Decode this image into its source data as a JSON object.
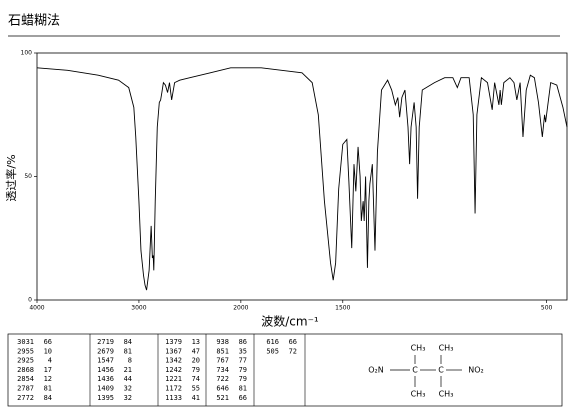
{
  "chart_data": {
    "type": "line",
    "title": "石蜡糊法",
    "x_label": "波数/cm⁻¹",
    "y_label": "透过率/%",
    "xlim": [
      4000,
      400
    ],
    "x_compressed_above": 2000,
    "ylim": [
      0,
      100
    ],
    "xticks": [
      4000,
      3000,
      2000,
      1500,
      500
    ],
    "yticks": [
      0,
      50,
      100
    ],
    "color": "#000000",
    "x": [
      4000,
      3700,
      3400,
      3200,
      3100,
      3050,
      3031,
      3000,
      2980,
      2955,
      2940,
      2925,
      2900,
      2880,
      2868,
      2860,
      2854,
      2840,
      2820,
      2800,
      2787,
      2775,
      2760,
      2740,
      2719,
      2700,
      2679,
      2650,
      2600,
      2500,
      2300,
      2100,
      2000,
      1900,
      1800,
      1700,
      1650,
      1620,
      1590,
      1560,
      1547,
      1535,
      1520,
      1500,
      1480,
      1470,
      1456,
      1445,
      1436,
      1425,
      1415,
      1409,
      1400,
      1395,
      1388,
      1379,
      1372,
      1367,
      1355,
      1342,
      1330,
      1310,
      1280,
      1260,
      1242,
      1230,
      1221,
      1210,
      1195,
      1180,
      1172,
      1165,
      1150,
      1140,
      1133,
      1125,
      1110,
      1050,
      1000,
      960,
      938,
      920,
      880,
      860,
      851,
      842,
      820,
      790,
      767,
      755,
      734,
      728,
      722,
      710,
      680,
      660,
      646,
      630,
      616,
      600,
      580,
      560,
      540,
      521,
      510,
      505,
      480,
      450,
      420,
      400
    ],
    "values": [
      94,
      93,
      91,
      89,
      86,
      78,
      66,
      40,
      20,
      10,
      6,
      4,
      12,
      30,
      17,
      18,
      12,
      40,
      70,
      80,
      81,
      84,
      88,
      87,
      84,
      88,
      81,
      88,
      89,
      90,
      92,
      94,
      94,
      94,
      93,
      92,
      88,
      75,
      40,
      15,
      8,
      15,
      45,
      63,
      65,
      48,
      21,
      55,
      44,
      62,
      50,
      32,
      40,
      32,
      50,
      13,
      40,
      47,
      55,
      20,
      60,
      85,
      89,
      85,
      79,
      82,
      74,
      82,
      85,
      70,
      55,
      70,
      80,
      70,
      41,
      70,
      85,
      88,
      90,
      90,
      86,
      90,
      90,
      75,
      35,
      75,
      90,
      88,
      77,
      88,
      79,
      85,
      79,
      88,
      90,
      88,
      81,
      88,
      66,
      85,
      91,
      90,
      80,
      66,
      75,
      72,
      88,
      87,
      78,
      70
    ]
  },
  "peak_table": [
    [
      [
        3031,
        66
      ],
      [
        2955,
        10
      ],
      [
        2925,
        4
      ],
      [
        2868,
        17
      ],
      [
        2854,
        12
      ],
      [
        2787,
        81
      ],
      [
        2772,
        84
      ]
    ],
    [
      [
        2719,
        84
      ],
      [
        2679,
        81
      ],
      [
        1547,
        8
      ],
      [
        1456,
        21
      ],
      [
        1436,
        44
      ],
      [
        1409,
        32
      ],
      [
        1395,
        32
      ]
    ],
    [
      [
        1379,
        13
      ],
      [
        1367,
        47
      ],
      [
        1342,
        20
      ],
      [
        1242,
        79
      ],
      [
        1221,
        74
      ],
      [
        1172,
        55
      ],
      [
        1133,
        41
      ]
    ],
    [
      [
        938,
        86
      ],
      [
        851,
        35
      ],
      [
        767,
        77
      ],
      [
        734,
        79
      ],
      [
        722,
        79
      ],
      [
        646,
        81
      ],
      [
        521,
        66
      ]
    ],
    [
      [
        616,
        66
      ],
      [
        505,
        72
      ]
    ]
  ],
  "structure": {
    "top_left": "CH₃",
    "top_right": "CH₃",
    "bottom_left": "CH₃",
    "bottom_right": "CH₃",
    "left_group": "O₂N",
    "right_group": "NO₂",
    "left_atom": "C",
    "right_atom": "C"
  }
}
